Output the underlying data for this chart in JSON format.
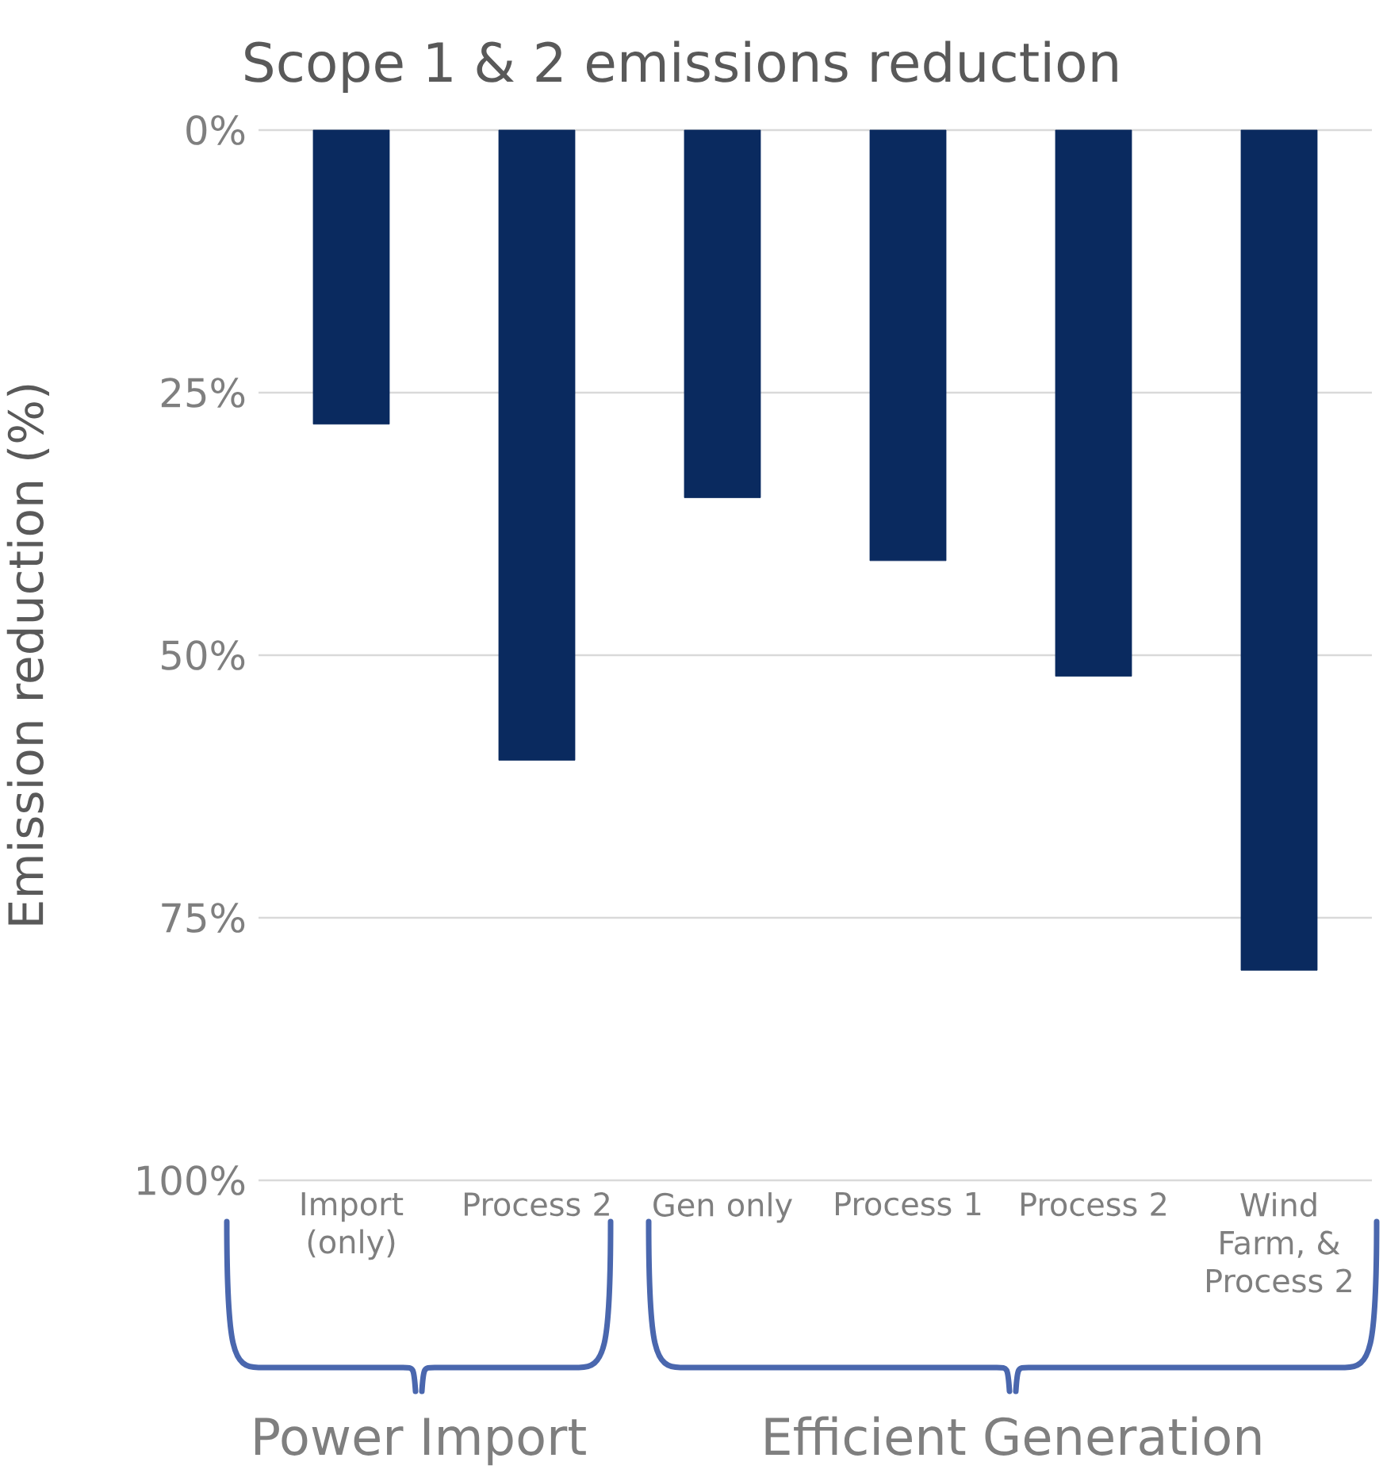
{
  "chart_data": {
    "type": "bar",
    "title": "Scope 1 & 2 emissions reduction",
    "ylabel": "Emission reduction (%)",
    "categories": [
      "Import (only)",
      "Process 2",
      "Gen only",
      "Process 1",
      "Process 2",
      "Wind Farm, & Process 2"
    ],
    "values": [
      28,
      60,
      35,
      41,
      52,
      80
    ],
    "color": "#0a2a5f",
    "ylim": [
      100,
      0
    ],
    "yticks": [
      {
        "value": 0,
        "label": "0%"
      },
      {
        "value": 25,
        "label": "25%"
      },
      {
        "value": 50,
        "label": "50%"
      },
      {
        "value": 75,
        "label": "75%"
      },
      {
        "value": 100,
        "label": "100%"
      }
    ],
    "grid": "y",
    "annotations": [
      "Power Import",
      "Efficient Generation"
    ]
  }
}
